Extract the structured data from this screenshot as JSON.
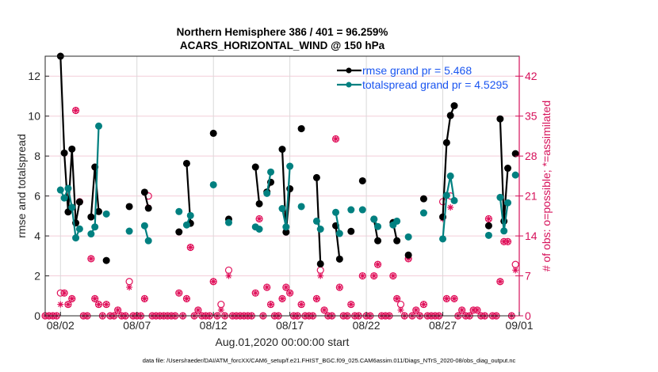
{
  "chart_data": {
    "type": "line",
    "title": [
      "Northern Hemisphere 386 / 401 = 96.259%",
      "ACARS_HORIZONTAL_WIND @ 150 hPa"
    ],
    "xlabel": "Aug.01,2020 00:00:00 start",
    "ylabel_left": "rmse and totalspread",
    "ylabel_right": "# of obs: o=possible; *=assimilated",
    "footer": "data file: /Users/raeder/DAI/ATM_forcXX/CAM6_setup/f.e21.FHIST_BGC.f09_025.CAM6assim.011/Diags_NTrS_2020-08/obs_diag_output.nc",
    "xlim": [
      "08/01 00",
      "09/01 00"
    ],
    "xticks": [
      "08/02",
      "08/07",
      "08/12",
      "08/17",
      "08/22",
      "08/27",
      "09/01"
    ],
    "ylim_left": [
      0,
      13
    ],
    "yticks_left": [
      0,
      2,
      4,
      6,
      8,
      10,
      12
    ],
    "ylim_right": [
      0,
      45.5
    ],
    "yticks_right": [
      0,
      7,
      14,
      21,
      28,
      35,
      42
    ],
    "grid": true,
    "legend_position": "top-right",
    "colors": {
      "rmse": "#000000",
      "spread": "#008080",
      "obs": "#e0105a",
      "grid": "#f3cdd9",
      "legend_text": "#1a55f0",
      "right_axis": "#d6115a"
    },
    "legend": [
      {
        "series": "rmse",
        "label": "rmse grand pr = 5.468"
      },
      {
        "series": "spread",
        "label": "totalspread grand pr = 4.5295"
      }
    ],
    "segments": [
      {
        "t": [
          "08/02 00",
          "08/02 06",
          "08/02 12",
          "08/02 18",
          "08/03 00",
          "08/03 06"
        ],
        "rmse": [
          13.0,
          8.15,
          5.2,
          8.35,
          4.65,
          5.7
        ],
        "spread": [
          6.3,
          5.9,
          6.38,
          5.43,
          3.9,
          4.35
        ]
      },
      {
        "t": [
          "08/04 00",
          "08/04 06",
          "08/04 12"
        ],
        "rmse": [
          4.95,
          7.45,
          5.22
        ],
        "spread": [
          4.1,
          4.45,
          9.5
        ]
      },
      {
        "t": [
          "08/05 00"
        ],
        "rmse": [
          2.77
        ],
        "spread": [
          5.1
        ]
      },
      {
        "t": [
          "08/06 12"
        ],
        "rmse": [
          5.47
        ],
        "spread": [
          4.24
        ]
      },
      {
        "t": [
          "08/07 12",
          "08/07 18"
        ],
        "rmse": [
          6.19,
          5.39
        ],
        "spread": [
          4.51,
          3.76
        ]
      },
      {
        "t": [
          "08/09 18"
        ],
        "rmse": [
          4.2
        ],
        "spread": [
          5.22
        ]
      },
      {
        "t": [
          "08/10 06",
          "08/10 12"
        ],
        "rmse": [
          7.63,
          4.63
        ],
        "spread": [
          4.55,
          5.02
        ]
      },
      {
        "t": [
          "08/12 00"
        ],
        "rmse": [
          9.14
        ],
        "spread": [
          6.56
        ]
      },
      {
        "t": [
          "08/13 00"
        ],
        "rmse": [
          4.84
        ],
        "spread": [
          4.67
        ]
      },
      {
        "t": [
          "08/14 18",
          "08/15 00"
        ],
        "rmse": [
          7.45,
          5.61
        ],
        "spread": [
          4.45,
          4.34
        ]
      },
      {
        "t": [
          "08/15 12",
          "08/15 18"
        ],
        "rmse": [
          6.2,
          6.69
        ],
        "spread": [
          6.13,
          7.2
        ]
      },
      {
        "t": [
          "08/16 12",
          "08/16 18",
          "08/17 00"
        ],
        "rmse": [
          8.34,
          4.19,
          6.36
        ],
        "spread": [
          5.37,
          4.45,
          7.49
        ]
      },
      {
        "t": [
          "08/17 18"
        ],
        "rmse": [
          9.37
        ],
        "spread": [
          5.47
        ]
      },
      {
        "t": [
          "08/18 18",
          "08/19 00"
        ],
        "rmse": [
          6.92,
          2.6
        ],
        "spread": [
          4.74,
          4.34
        ]
      },
      {
        "t": [
          "08/20 00",
          "08/20 06"
        ],
        "rmse": [
          4.51,
          2.84
        ],
        "spread": [
          5.18,
          4.12
        ]
      },
      {
        "t": [
          "08/21 00"
        ],
        "rmse": [
          4.23
        ],
        "spread": [
          5.31
        ]
      },
      {
        "t": [
          "08/21 18"
        ],
        "rmse": [
          6.76
        ],
        "spread": [
          5.31
        ]
      },
      {
        "t": [
          "08/22 12",
          "08/22 18"
        ],
        "rmse": [
          4.84,
          3.76
        ],
        "spread": [
          4.84,
          4.47
        ]
      },
      {
        "t": [
          "08/23 18",
          "08/24 00"
        ],
        "rmse": [
          4.67,
          3.76
        ],
        "spread": [
          4.55,
          4.74
        ]
      },
      {
        "t": [
          "08/24 18"
        ],
        "rmse": [
          3.04
        ],
        "spread": [
          3.95
        ]
      },
      {
        "t": [
          "08/25 18"
        ],
        "rmse": [
          5.86
        ],
        "spread": [
          5.15
        ]
      },
      {
        "t": [
          "08/27 00",
          "08/27 06",
          "08/27 12",
          "08/27 18"
        ],
        "rmse": [
          4.95,
          8.67,
          10.03,
          10.52
        ],
        "spread": [
          3.85,
          6.03,
          7.0,
          5.77
        ]
      },
      {
        "t": [
          "08/30 00"
        ],
        "rmse": [
          4.51
        ],
        "spread": [
          4.03
        ]
      },
      {
        "t": [
          "08/30 18",
          "08/31 00",
          "08/31 06"
        ],
        "rmse": [
          9.86,
          4.74,
          7.39
        ],
        "spread": [
          5.93,
          4.25,
          5.66
        ]
      },
      {
        "t": [
          "08/31 18"
        ],
        "rmse": [
          8.12
        ],
        "spread": [
          7.05
        ]
      }
    ],
    "obs_start": "08/01 00",
    "obs_interval_hours": 6,
    "obs_possible": [
      0,
      0,
      0,
      0,
      4,
      4,
      2,
      3,
      36,
      20,
      0,
      0,
      10,
      3,
      2,
      0,
      2,
      0,
      0,
      1,
      0,
      0,
      6,
      0,
      0,
      0,
      3,
      21,
      0,
      0,
      0,
      0,
      0,
      0,
      0,
      4,
      0,
      3,
      12,
      0,
      1,
      0,
      0,
      0,
      6,
      0,
      2,
      0,
      8,
      0,
      0,
      0,
      0,
      0,
      0,
      4,
      17,
      0,
      5,
      2,
      0,
      0,
      3,
      5,
      4,
      0,
      0,
      2,
      0,
      0,
      0,
      3,
      8,
      1,
      0,
      0,
      31,
      5,
      0,
      0,
      2,
      0,
      0,
      7,
      0,
      0,
      7,
      9,
      0,
      0,
      0,
      7,
      3,
      2,
      0,
      10,
      0,
      1,
      0,
      2,
      0,
      0,
      0,
      0,
      20,
      3,
      21,
      3,
      0,
      1,
      0,
      0,
      1,
      1,
      0,
      0,
      17,
      0,
      0,
      6,
      13,
      13,
      0,
      9
    ],
    "obs_assimilated": [
      0,
      0,
      0,
      0,
      2,
      4,
      2,
      3,
      36,
      20,
      0,
      0,
      10,
      3,
      2,
      0,
      2,
      0,
      0,
      1,
      0,
      0,
      5,
      0,
      0,
      0,
      3,
      19,
      0,
      0,
      0,
      0,
      0,
      0,
      0,
      4,
      0,
      3,
      12,
      0,
      1,
      0,
      0,
      0,
      6,
      0,
      1,
      0,
      7,
      0,
      0,
      0,
      0,
      0,
      0,
      4,
      17,
      0,
      5,
      2,
      0,
      0,
      3,
      5,
      4,
      0,
      0,
      2,
      0,
      0,
      0,
      3,
      7,
      1,
      0,
      0,
      31,
      5,
      0,
      0,
      2,
      0,
      0,
      7,
      0,
      0,
      7,
      9,
      0,
      0,
      0,
      7,
      3,
      1,
      0,
      10,
      0,
      1,
      0,
      2,
      0,
      0,
      0,
      0,
      17,
      3,
      19,
      3,
      0,
      1,
      0,
      0,
      1,
      1,
      0,
      0,
      17,
      0,
      0,
      6,
      13,
      13,
      0,
      8
    ]
  }
}
